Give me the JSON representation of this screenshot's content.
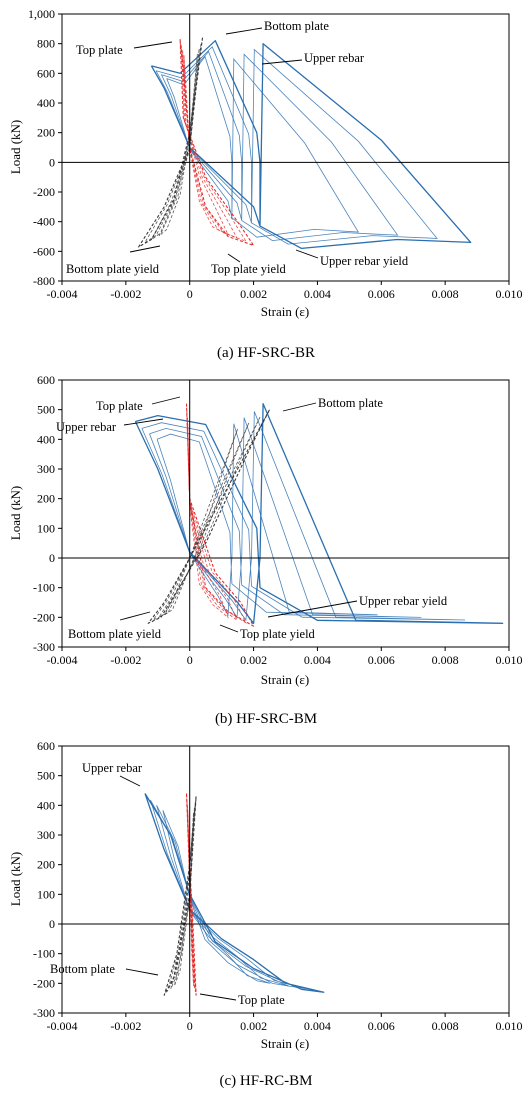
{
  "figure_colors": {
    "blue": "#2a6fb0",
    "red": "#e52c2c",
    "black": "#3a3a3a",
    "axis": "#000000"
  },
  "chart_data": [
    {
      "type": "line",
      "caption": "(a) HF-SRC-BR",
      "xlabel": "Strain (ε)",
      "ylabel": "Load (kN)",
      "xlim": [
        -0.004,
        0.01
      ],
      "ylim": [
        -800,
        1000
      ],
      "xticks": [
        "-0.004",
        "-0.002",
        "0",
        "0.002",
        "0.004",
        "0.006",
        "0.008",
        "0.010"
      ],
      "xtick_values": [
        -0.004,
        -0.002,
        0,
        0.002,
        0.004,
        0.006,
        0.008,
        0.01
      ],
      "yticks": [
        "-800",
        "-600",
        "-400",
        "-200",
        "0",
        "200",
        "400",
        "600",
        "800",
        "1,000"
      ],
      "ytick_values": [
        -800,
        -600,
        -400,
        -200,
        0,
        200,
        400,
        600,
        800,
        1000
      ],
      "grid": false,
      "series": [
        {
          "name": "Upper rebar",
          "color": "blue",
          "dash": false,
          "x": [
            -0.0012,
            -0.0008,
            0.0,
            0.002,
            0.0022,
            0.0023,
            0.006,
            0.0088,
            0.0065,
            0.0035,
            0.0022,
            0.0022,
            0.0021,
            0.0008,
            -0.0003,
            -0.0012
          ],
          "y": [
            650,
            500,
            100,
            -300,
            -430,
            800,
            150,
            -540,
            -520,
            -580,
            -430,
            0,
            200,
            820,
            600,
            650
          ]
        },
        {
          "name": "Top plate",
          "color": "red",
          "dash": true,
          "x": [
            -0.0003,
            -0.0002,
            0.0,
            0.0005,
            0.0012,
            0.002,
            0.0015,
            0.0005,
            -0.0002,
            -0.0003
          ],
          "y": [
            830,
            600,
            100,
            -300,
            -500,
            -560,
            -400,
            -100,
            300,
            830
          ]
        },
        {
          "name": "Bottom plate",
          "color": "black",
          "dash": true,
          "x": [
            0.0004,
            0.0002,
            0.0,
            -0.0008,
            -0.0016,
            -0.0012,
            -0.0005,
            0.0,
            0.0004
          ],
          "y": [
            840,
            500,
            100,
            -300,
            -570,
            -520,
            -250,
            200,
            840
          ]
        }
      ],
      "annotations": [
        "Bottom plate",
        "Upper rebar",
        "Top plate",
        "Bottom plate yield",
        "Top plate yield",
        "Upper rebar yield"
      ]
    },
    {
      "type": "line",
      "caption": "(b) HF-SRC-BM",
      "xlabel": "Strain (ε)",
      "ylabel": "Load (kN)",
      "xlim": [
        -0.004,
        0.01
      ],
      "ylim": [
        -300,
        600
      ],
      "xticks": [
        "-0.004",
        "-0.002",
        "0",
        "0.002",
        "0.004",
        "0.006",
        "0.008",
        "0.010"
      ],
      "xtick_values": [
        -0.004,
        -0.002,
        0,
        0.002,
        0.004,
        0.006,
        0.008,
        0.01
      ],
      "yticks": [
        "-300",
        "-200",
        "-100",
        "0",
        "100",
        "200",
        "300",
        "400",
        "500",
        "600"
      ],
      "ytick_values": [
        -300,
        -200,
        -100,
        0,
        100,
        200,
        300,
        400,
        500,
        600
      ],
      "grid": false,
      "series": [
        {
          "name": "Upper rebar",
          "color": "blue",
          "dash": false,
          "x": [
            -0.0017,
            -0.001,
            0.0,
            0.0015,
            0.002,
            0.0022,
            0.0023,
            0.0052,
            0.0098,
            0.004,
            0.0022,
            0.0021,
            0.0005,
            -0.001,
            -0.0017
          ],
          "y": [
            460,
            300,
            20,
            -150,
            -220,
            0,
            520,
            -210,
            -220,
            -210,
            -100,
            100,
            450,
            480,
            460
          ]
        },
        {
          "name": "Top plate",
          "color": "red",
          "dash": true,
          "x": [
            -0.0001,
            0.0,
            0.0005,
            0.0012,
            0.002,
            0.0016,
            0.0008,
            0.0,
            -0.0001
          ],
          "y": [
            520,
            200,
            -100,
            -180,
            -230,
            -150,
            -50,
            200,
            520
          ]
        },
        {
          "name": "Bottom plate",
          "color": "black",
          "dash": true,
          "x": [
            0.0025,
            0.0015,
            0.0,
            -0.0008,
            -0.0013,
            -0.0009,
            0.0005,
            0.0018,
            0.0025
          ],
          "y": [
            500,
            300,
            0,
            -150,
            -220,
            -200,
            50,
            350,
            500
          ]
        }
      ],
      "annotations": [
        "Top plate",
        "Bottom plate",
        "Upper rebar",
        "Upper rebar yield",
        "Bottom plate yield",
        "Top plate yield"
      ]
    },
    {
      "type": "line",
      "caption": "(c) HF-RC-BM",
      "xlabel": "Strain (ε)",
      "ylabel": "Load (kN)",
      "xlim": [
        -0.004,
        0.01
      ],
      "ylim": [
        -300,
        600
      ],
      "xticks": [
        "-0.004",
        "-0.002",
        "0",
        "0.002",
        "0.004",
        "0.006",
        "0.008",
        "0.010"
      ],
      "xtick_values": [
        -0.004,
        -0.002,
        0,
        0.002,
        0.004,
        0.006,
        0.008,
        0.01
      ],
      "yticks": [
        "-300",
        "-200",
        "-100",
        "0",
        "100",
        "200",
        "300",
        "400",
        "500",
        "600"
      ],
      "ytick_values": [
        -300,
        -200,
        -100,
        0,
        100,
        200,
        300,
        400,
        500,
        600
      ],
      "grid": false,
      "series": [
        {
          "name": "Upper rebar",
          "color": "blue",
          "dash": false,
          "x": [
            -0.0014,
            -0.0008,
            0.0,
            0.001,
            0.002,
            0.003,
            0.0042,
            0.0035,
            0.002,
            0.0008,
            0.0,
            -0.0006,
            -0.0014
          ],
          "y": [
            440,
            250,
            50,
            -50,
            -120,
            -200,
            -230,
            -220,
            -150,
            -60,
            100,
            300,
            440
          ]
        },
        {
          "name": "Top plate",
          "color": "red",
          "dash": true,
          "x": [
            -0.0001,
            0.0,
            0.0001,
            0.0002,
            0.0001,
            0.0,
            -0.0001
          ],
          "y": [
            440,
            200,
            0,
            -240,
            -100,
            150,
            440
          ]
        },
        {
          "name": "Bottom plate",
          "color": "black",
          "dash": true,
          "x": [
            0.0002,
            0.0,
            -0.0004,
            -0.0008,
            -0.0005,
            0.0,
            0.0002
          ],
          "y": [
            430,
            200,
            -100,
            -240,
            -180,
            100,
            430
          ]
        }
      ],
      "annotations": [
        "Upper rebar",
        "Bottom plate",
        "Top plate"
      ]
    }
  ]
}
